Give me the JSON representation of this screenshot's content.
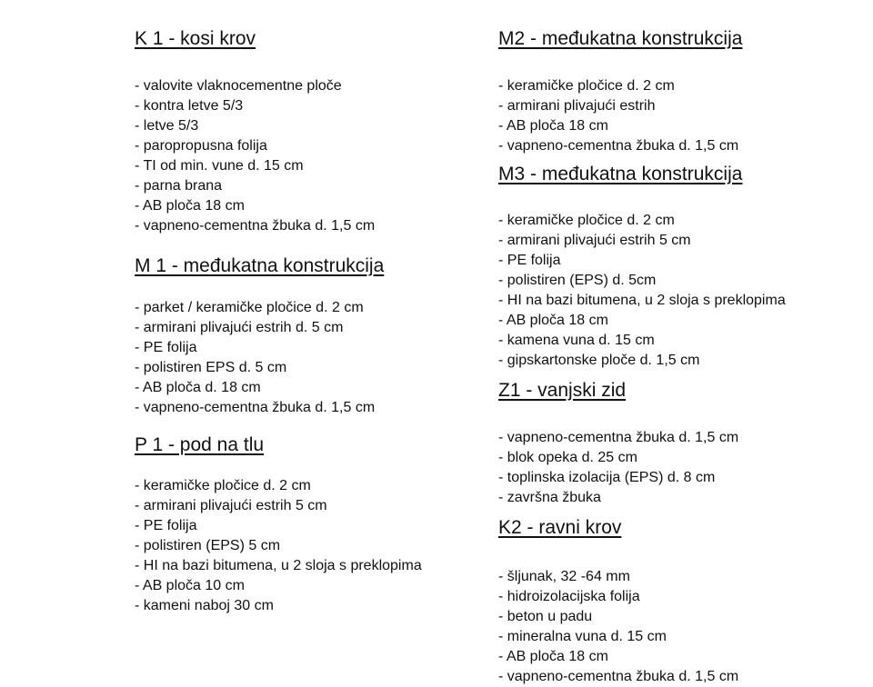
{
  "sections": [
    {
      "title": "K 1 - kosi krov",
      "items": [
        "-  valovite vlaknocementne ploče",
        "- kontra letve 5/3",
        "- letve 5/3",
        "- paropropusna folija",
        "- TI od min. vune d. 15 cm",
        "- parna brana",
        "- AB ploča 18 cm",
        "- vapneno-cementna žbuka d. 1,5 cm"
      ]
    },
    {
      "title": "M 1 - međukatna konstrukcija",
      "items": [
        "- parket / keramičke pločice d. 2 cm",
        "- armirani plivajući estrih d. 5 cm",
        "- PE folija",
        "- polistiren EPS d. 5 cm",
        "- AB ploča d. 18 cm",
        "- vapneno-cementna žbuka d. 1,5 cm"
      ]
    },
    {
      "title": "P 1 - pod na tlu",
      "items": [
        "- keramičke pločice d. 2 cm",
        "- armirani plivajući estrih 5 cm",
        "- PE folija",
        "- polistiren (EPS) 5 cm",
        "- HI na bazi bitumena, u 2 sloja s preklopima",
        "- AB ploča 10 cm",
        "- kameni naboj 30 cm"
      ]
    },
    {
      "title": "M2 - međukatna konstrukcija",
      "items": [
        "-  keramičke pločice d. 2 cm",
        "- armirani plivajući estrih",
        "- AB ploča 18 cm",
        "- vapneno-cementna žbuka d. 1,5 cm"
      ]
    },
    {
      "title": "M3 - međukatna konstrukcija",
      "items": [
        "-  keramičke pločice d. 2 cm",
        "- armirani plivajući estrih 5 cm",
        "- PE folija",
        "- polistiren (EPS) d. 5cm",
        "- HI na bazi bitumena, u 2 sloja s preklopima",
        "- AB ploča 18 cm",
        "- kamena vuna d. 15 cm",
        "- gipskartonske ploče d. 1,5 cm"
      ]
    },
    {
      "title": "Z1 - vanjski zid",
      "items": [
        "- vapneno-cementna žbuka d. 1,5 cm",
        "- blok opeka d. 25 cm",
        "- toplinska izolacija (EPS) d. 8 cm",
        "- završna žbuka"
      ]
    },
    {
      "title": "K2 - ravni krov",
      "items": [
        "- šljunak, 32 -64 mm",
        "- hidroizolacijska folija",
        "- beton u padu",
        "- mineralna vuna d. 15 cm",
        "- AB ploča 18 cm",
        "- vapneno-cementna žbuka d. 1,5 cm"
      ]
    }
  ]
}
